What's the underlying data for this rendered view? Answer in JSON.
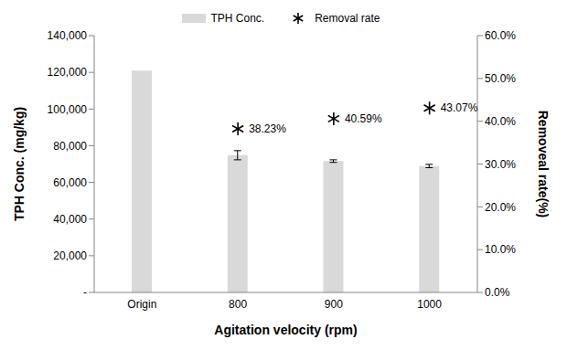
{
  "chart_data": {
    "type": "bar",
    "categories": [
      "Origin",
      "800",
      "900",
      "1000"
    ],
    "x_label": "Agitation velocity (rpm)",
    "y_label": "TPH Conc. (mg/kg)",
    "y2_label": "Removeal rate(%)",
    "legend": "top",
    "grid": false,
    "ylim": [
      0,
      140000
    ],
    "yticks": [
      {
        "value": 0,
        "label": "-"
      },
      {
        "value": 20000,
        "label": "20,000"
      },
      {
        "value": 40000,
        "label": "40,000"
      },
      {
        "value": 60000,
        "label": "60,000"
      },
      {
        "value": 80000,
        "label": "80,000"
      },
      {
        "value": 100000,
        "label": "100,000"
      },
      {
        "value": 120000,
        "label": "120,000"
      },
      {
        "value": 140000,
        "label": "140,000"
      }
    ],
    "y2lim": [
      0,
      60
    ],
    "y2ticks": [
      {
        "value": 0,
        "label": "0.0%"
      },
      {
        "value": 10,
        "label": "10.0%"
      },
      {
        "value": 20,
        "label": "20.0%"
      },
      {
        "value": 30,
        "label": "30.0%"
      },
      {
        "value": 40,
        "label": "40.0%"
      },
      {
        "value": 50,
        "label": "50.0%"
      },
      {
        "value": 60,
        "label": "60.0%"
      }
    ],
    "series": [
      {
        "name": "TPH Conc.",
        "type": "bar",
        "color": "#d9d9d9",
        "values": [
          121000,
          74800,
          71600,
          68900
        ],
        "error": [
          null,
          2500,
          700,
          900
        ]
      },
      {
        "name": "Removal rate",
        "type": "scatter",
        "axis": "y2",
        "color": "#000000",
        "marker": "asterisk",
        "values": [
          null,
          38.23,
          40.59,
          43.07
        ],
        "value_labels": [
          null,
          "38.23%",
          "40.59%",
          "43.07%"
        ],
        "data_labels": true
      }
    ]
  }
}
